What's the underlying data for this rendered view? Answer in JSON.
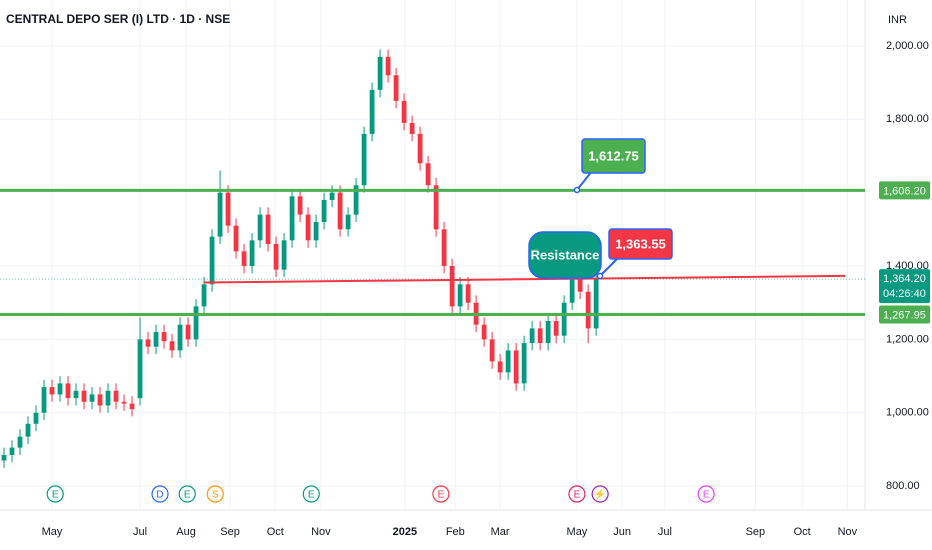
{
  "chart_data": {
    "type": "candlestick",
    "title": "CENTRAL DEPO SER (I) LTD · 1D · NSE",
    "currency": "INR",
    "up_color": "#089981",
    "down_color": "#f23645",
    "grid": true,
    "xlim": [
      -0.5,
      107.6
    ],
    "ylim": [
      735,
      2125
    ],
    "yticks": [
      {
        "value": 800,
        "label": "800.00"
      },
      {
        "value": 1000,
        "label": "1,000.00"
      },
      {
        "value": 1200,
        "label": "1,200.00"
      },
      {
        "value": 1400,
        "label": "1,400.00"
      },
      {
        "value": 1800,
        "label": "1,800.00"
      },
      {
        "value": 2000,
        "label": "2,000.00"
      }
    ],
    "xticks": [
      {
        "value": 6,
        "label": "May"
      },
      {
        "value": 17,
        "label": "Jul"
      },
      {
        "value": 22.75,
        "label": "Aug"
      },
      {
        "value": 28.25,
        "label": "Sep"
      },
      {
        "value": 33.9,
        "label": "Oct"
      },
      {
        "value": 39.6,
        "label": "Nov"
      },
      {
        "value": 50.1,
        "label": "2025"
      },
      {
        "value": 56.4,
        "label": "Feb"
      },
      {
        "value": 62,
        "label": "Mar"
      },
      {
        "value": 71.6,
        "label": "May"
      },
      {
        "value": 77.25,
        "label": "Jun"
      },
      {
        "value": 82.6,
        "label": "Jul"
      },
      {
        "value": 93.9,
        "label": "Sep"
      },
      {
        "value": 99.75,
        "label": "Oct"
      },
      {
        "value": 105.4,
        "label": "Nov"
      }
    ],
    "open": [
      870,
      885,
      905,
      935,
      970,
      1000,
      1070,
      1050,
      1080,
      1040,
      1060,
      1030,
      1050,
      1020,
      1060,
      1030,
      1025,
      1040,
      1200,
      1180,
      1220,
      1195,
      1170,
      1240,
      1200,
      1290,
      1350,
      1480,
      1600,
      1510,
      1440,
      1400,
      1470,
      1540,
      1460,
      1390,
      1470,
      1590,
      1540,
      1470,
      1520,
      1580,
      1600,
      1500,
      1540,
      1620,
      1760,
      1880,
      1970,
      1920,
      1850,
      1790,
      1760,
      1680,
      1620,
      1500,
      1400,
      1290,
      1350,
      1300,
      1240,
      1200,
      1140,
      1110,
      1170,
      1080,
      1190,
      1230,
      1190,
      1250,
      1210,
      1300,
      1390,
      1330,
      1230
    ],
    "high": [
      905,
      925,
      955,
      990,
      1020,
      1090,
      1090,
      1100,
      1100,
      1080,
      1080,
      1070,
      1070,
      1080,
      1080,
      1050,
      1045,
      1260,
      1220,
      1240,
      1240,
      1215,
      1260,
      1260,
      1310,
      1370,
      1500,
      1660,
      1620,
      1530,
      1460,
      1490,
      1560,
      1560,
      1480,
      1490,
      1610,
      1610,
      1560,
      1540,
      1600,
      1620,
      1620,
      1560,
      1640,
      1780,
      1900,
      1990,
      1990,
      1940,
      1870,
      1810,
      1780,
      1700,
      1640,
      1520,
      1420,
      1370,
      1370,
      1320,
      1260,
      1220,
      1160,
      1190,
      1190,
      1210,
      1250,
      1250,
      1270,
      1270,
      1320,
      1410,
      1410,
      1350,
      1384
    ],
    "low": [
      850,
      865,
      885,
      915,
      950,
      980,
      1030,
      1030,
      1020,
      1020,
      1010,
      1010,
      1000,
      1000,
      1010,
      1005,
      990,
      1020,
      1160,
      1160,
      1175,
      1150,
      1150,
      1180,
      1180,
      1270,
      1330,
      1460,
      1490,
      1420,
      1380,
      1380,
      1450,
      1440,
      1370,
      1370,
      1450,
      1520,
      1450,
      1450,
      1500,
      1560,
      1480,
      1480,
      1520,
      1600,
      1740,
      1860,
      1900,
      1830,
      1770,
      1740,
      1660,
      1600,
      1480,
      1380,
      1270,
      1270,
      1280,
      1220,
      1180,
      1120,
      1090,
      1090,
      1060,
      1060,
      1170,
      1170,
      1170,
      1190,
      1190,
      1280,
      1310,
      1190,
      1210
    ],
    "close": [
      885,
      905,
      935,
      970,
      1000,
      1070,
      1050,
      1080,
      1040,
      1060,
      1030,
      1050,
      1020,
      1060,
      1030,
      1025,
      1010,
      1200,
      1180,
      1220,
      1195,
      1170,
      1240,
      1200,
      1290,
      1350,
      1480,
      1600,
      1510,
      1440,
      1400,
      1470,
      1540,
      1460,
      1390,
      1470,
      1590,
      1540,
      1470,
      1520,
      1580,
      1600,
      1500,
      1540,
      1620,
      1760,
      1880,
      1970,
      1920,
      1850,
      1790,
      1760,
      1680,
      1620,
      1500,
      1400,
      1290,
      1350,
      1300,
      1240,
      1200,
      1140,
      1110,
      1170,
      1080,
      1190,
      1230,
      1190,
      1250,
      1210,
      1300,
      1390,
      1330,
      1230,
      1364.2
    ],
    "levels": [
      {
        "value": 1606.2,
        "label": "1,606.20",
        "color": "#4caf50"
      },
      {
        "value": 1267.95,
        "label": "1,267.95",
        "color": "#4caf50"
      }
    ],
    "last_price": {
      "value": 1364.2,
      "label": "1,364.20",
      "countdown": "04:26:40",
      "color": "#089981"
    },
    "trend_line": {
      "x": [
        25,
        105.1
      ],
      "y": [
        1355,
        1373
      ],
      "color": "#f23645"
    },
    "annotations": [
      {
        "text": "1,612.75",
        "color": "#4caf50"
      },
      {
        "text": "1,363.55",
        "color": "#f23645"
      },
      {
        "text": "Resistance",
        "color": "#089981"
      }
    ],
    "events": [
      {
        "x": 6.4,
        "label": "E",
        "color": "#089981"
      },
      {
        "x": 19.5,
        "label": "D",
        "color": "#2962ff"
      },
      {
        "x": 22.9,
        "label": "E",
        "color": "#089981"
      },
      {
        "x": 26.4,
        "label": "S",
        "color": "#ff9800"
      },
      {
        "x": 38.4,
        "label": "E",
        "color": "#089981"
      },
      {
        "x": 54.6,
        "label": "E",
        "color": "#f23645"
      },
      {
        "x": 71.6,
        "label": "E",
        "color": "#e91e63"
      },
      {
        "x": 74.5,
        "label": "⚡",
        "color": "#9c27b0"
      },
      {
        "x": 87.75,
        "label": "E",
        "color": "#e040fb"
      }
    ]
  }
}
